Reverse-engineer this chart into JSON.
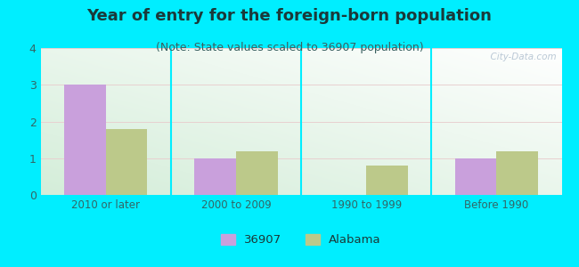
{
  "title": "Year of entry for the foreign-born population",
  "subtitle": "(Note: State values scaled to 36907 population)",
  "categories": [
    "2010 or later",
    "2000 to 2009",
    "1990 to 1999",
    "Before 1990"
  ],
  "series_36907": [
    3.0,
    1.0,
    0.0,
    1.0
  ],
  "series_alabama": [
    1.8,
    1.2,
    0.8,
    1.2
  ],
  "color_36907": "#c9a0dc",
  "color_alabama": "#bcc98a",
  "background_outer": "#00eeff",
  "ylim": [
    0,
    4
  ],
  "yticks": [
    0,
    1,
    2,
    3,
    4
  ],
  "legend_36907": "36907",
  "legend_alabama": "Alabama",
  "bar_width": 0.32,
  "title_fontsize": 13,
  "subtitle_fontsize": 9,
  "title_color": "#1a3a3a",
  "subtitle_color": "#3a6060",
  "watermark": "  City-Data.com",
  "tick_label_color": "#336666",
  "ytick_label_color": "#336666"
}
